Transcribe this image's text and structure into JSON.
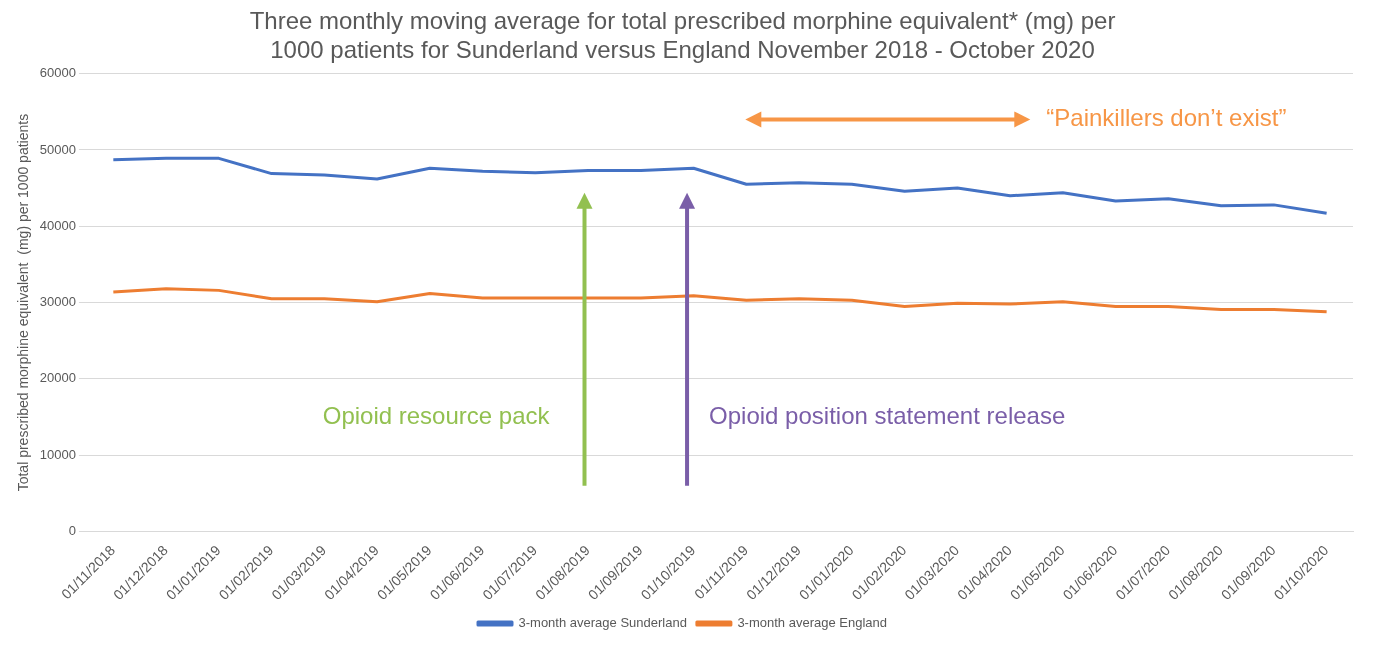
{
  "chart_data": {
    "type": "line",
    "title": [
      "Three monthly moving average for total prescribed morphine equivalent* (mg) per",
      "1000 patients for Sunderland versus England November 2018 - October 2020"
    ],
    "ylabel": "Total prescribed morphine equivalent  (mg) per 1000 patients",
    "categories": [
      "01/11/2018",
      "01/12/2018",
      "01/01/2019",
      "01/02/2019",
      "01/03/2019",
      "01/04/2019",
      "01/05/2019",
      "01/06/2019",
      "01/07/2019",
      "01/08/2019",
      "01/09/2019",
      "01/10/2019",
      "01/11/2019",
      "01/12/2019",
      "01/01/2020",
      "01/02/2020",
      "01/03/2020",
      "01/04/2020",
      "01/05/2020",
      "01/06/2020",
      "01/07/2020",
      "01/08/2020",
      "01/09/2020",
      "01/10/2020"
    ],
    "series": [
      {
        "name": "3-month average Sunderland",
        "color": "#4472c4",
        "values": [
          48700,
          48900,
          48900,
          46900,
          46700,
          46200,
          47600,
          47200,
          47000,
          47300,
          47300,
          47600,
          45500,
          45700,
          45500,
          44600,
          45000,
          44000,
          44400,
          43300,
          43600,
          42700,
          42800,
          41700
        ]
      },
      {
        "name": "3-month average England",
        "color": "#ed7d31",
        "values": [
          31400,
          31800,
          31600,
          30500,
          30500,
          30100,
          31200,
          30600,
          30600,
          30600,
          30600,
          30900,
          30300,
          30500,
          30300,
          29500,
          29900,
          29800,
          30100,
          29500,
          29500,
          29100,
          29100,
          28800
        ]
      }
    ],
    "ylim": [
      0,
      60000
    ],
    "yticks": [
      0,
      10000,
      20000,
      30000,
      40000,
      50000,
      60000
    ],
    "grid": "y",
    "legend": "bottom",
    "marker": "none",
    "line_style": "solid",
    "annotations": [
      "Opioid resource pack",
      "Opioid position statement release",
      "“Painkillers don’t exist”"
    ]
  }
}
